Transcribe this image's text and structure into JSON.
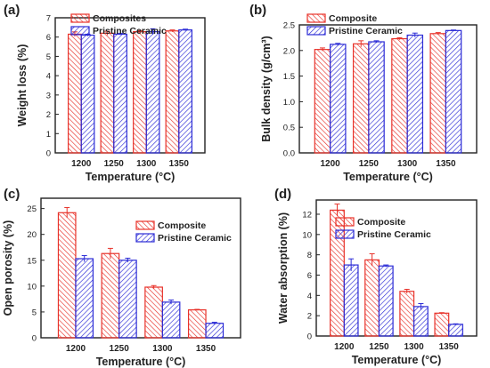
{
  "figure": {
    "panel_labels": [
      "(a)",
      "(b)",
      "(c)",
      "(d)"
    ],
    "series_colors": {
      "red": "#e8322a",
      "blue": "#2b2bd6"
    }
  },
  "chart_data": [
    {
      "type": "bar",
      "panel": "(a)",
      "xlabel": "Temperature (°C)",
      "ylabel": "Weight loss (%)",
      "categories": [
        "1200",
        "1250",
        "1300",
        "1350"
      ],
      "ylim": [
        0,
        7
      ],
      "yticks": [
        "0",
        "1",
        "2",
        "3",
        "4",
        "5",
        "6",
        "7"
      ],
      "legend_position": "top-left",
      "series": [
        {
          "name": "Composites",
          "color": "#e8322a",
          "values": [
            6.15,
            6.2,
            6.28,
            6.32
          ],
          "errors": [
            0.12,
            0.1,
            0.06,
            0.05
          ]
        },
        {
          "name": "Pristine Ceramic",
          "color": "#2b2bd6",
          "values": [
            6.1,
            6.15,
            6.28,
            6.37
          ],
          "errors": [
            0.05,
            0.04,
            0.15,
            0.04
          ]
        }
      ]
    },
    {
      "type": "bar",
      "panel": "(b)",
      "xlabel": "Temperature (°C)",
      "ylabel": "Bulk density (g/cm³)",
      "categories": [
        "1200",
        "1250",
        "1300",
        "1350"
      ],
      "ylim": [
        0,
        2.5
      ],
      "yticks": [
        "0.0",
        "0.5",
        "1.0",
        "1.5",
        "2.0",
        "2.5"
      ],
      "legend_position": "top-left",
      "series": [
        {
          "name": "Composite",
          "color": "#e8322a",
          "values": [
            2.02,
            2.13,
            2.23,
            2.33
          ],
          "errors": [
            0.03,
            0.06,
            0.02,
            0.02
          ]
        },
        {
          "name": "Pristine Ceramic",
          "color": "#2b2bd6",
          "values": [
            2.12,
            2.17,
            2.3,
            2.39
          ],
          "errors": [
            0.02,
            0.02,
            0.04,
            0.01
          ]
        }
      ]
    },
    {
      "type": "bar",
      "panel": "(c)",
      "xlabel": "Temperature (°C)",
      "ylabel": "Open porosity (%)",
      "categories": [
        "1200",
        "1250",
        "1300",
        "1350"
      ],
      "ylim": [
        0,
        27
      ],
      "yticks": [
        "0",
        "5",
        "10",
        "15",
        "20",
        "25"
      ],
      "ytick_values": [
        0,
        5,
        10,
        15,
        20,
        25
      ],
      "legend_position": "top-right",
      "series": [
        {
          "name": "Composite",
          "color": "#e8322a",
          "values": [
            24.2,
            16.3,
            9.8,
            5.4
          ],
          "errors": [
            1.0,
            1.0,
            0.3,
            0.1
          ]
        },
        {
          "name": "Pristine Ceramic",
          "color": "#2b2bd6",
          "values": [
            15.3,
            15.0,
            6.9,
            2.8
          ],
          "errors": [
            0.6,
            0.4,
            0.4,
            0.2
          ]
        }
      ]
    },
    {
      "type": "bar",
      "panel": "(d)",
      "xlabel": "Temperature (°C)",
      "ylabel": "Water absorption (%)",
      "categories": [
        "1200",
        "1250",
        "1300",
        "1350"
      ],
      "ylim": [
        0,
        13.4
      ],
      "yticks": [
        "0",
        "2",
        "4",
        "6",
        "8",
        "10",
        "12"
      ],
      "ytick_values": [
        0,
        2,
        4,
        6,
        8,
        10,
        12
      ],
      "legend_position": "top-right",
      "series": [
        {
          "name": "Composite",
          "color": "#e8322a",
          "values": [
            12.4,
            7.5,
            4.4,
            2.25
          ],
          "errors": [
            0.6,
            0.6,
            0.2,
            0.05
          ]
        },
        {
          "name": "Pristine Ceramic",
          "color": "#2b2bd6",
          "values": [
            7.0,
            6.9,
            2.9,
            1.15
          ],
          "errors": [
            0.6,
            0.1,
            0.3,
            0.05
          ]
        }
      ]
    }
  ]
}
